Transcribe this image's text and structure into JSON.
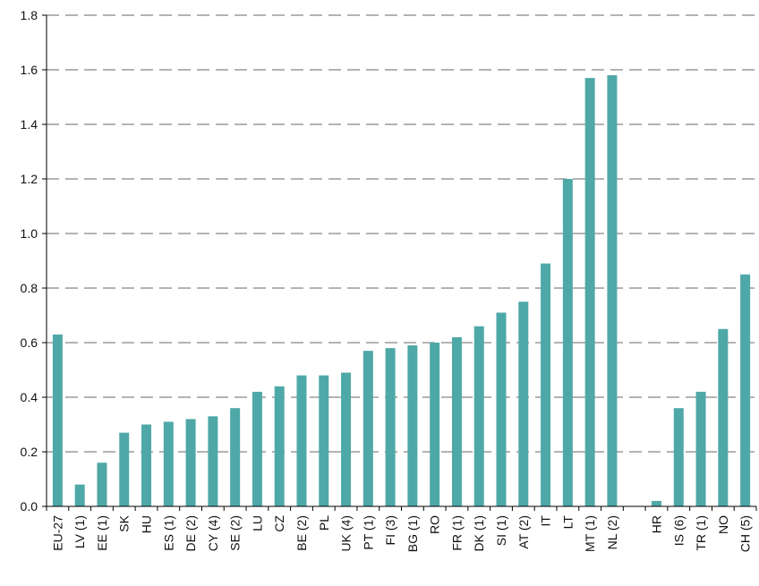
{
  "chart_data": {
    "type": "bar",
    "title": "",
    "xlabel": "",
    "ylabel": "",
    "ylim": [
      0,
      1.8
    ],
    "yticks": [
      "0.0",
      "0.2",
      "0.4",
      "0.6",
      "0.8",
      "1.0",
      "1.2",
      "1.4",
      "1.6",
      "1.8"
    ],
    "grid": true,
    "bar_color": "#4fa8a8",
    "categories": [
      "EU-27",
      "LV (1)",
      "EE (1)",
      "SK",
      "HU",
      "ES (1)",
      "DE (2)",
      "CY (4)",
      "SE (2)",
      "LU",
      "CZ",
      "BE (2)",
      "PL",
      "UK (4)",
      "PT (1)",
      "FI (3)",
      "BG (1)",
      "RO",
      "FR (1)",
      "DK (1)",
      "SI (1)",
      "AT (2)",
      "IT",
      "LT",
      "MT (1)",
      "NL (2)",
      "",
      "HR",
      "IS (6)",
      "TR (1)",
      "NO",
      "CH (5)"
    ],
    "values": [
      0.63,
      0.08,
      0.16,
      0.27,
      0.3,
      0.31,
      0.32,
      0.33,
      0.36,
      0.42,
      0.44,
      0.48,
      0.48,
      0.49,
      0.57,
      0.58,
      0.59,
      0.6,
      0.62,
      0.66,
      0.71,
      0.75,
      0.89,
      1.2,
      1.57,
      1.58,
      null,
      0.02,
      0.36,
      0.42,
      0.65,
      0.85
    ]
  }
}
